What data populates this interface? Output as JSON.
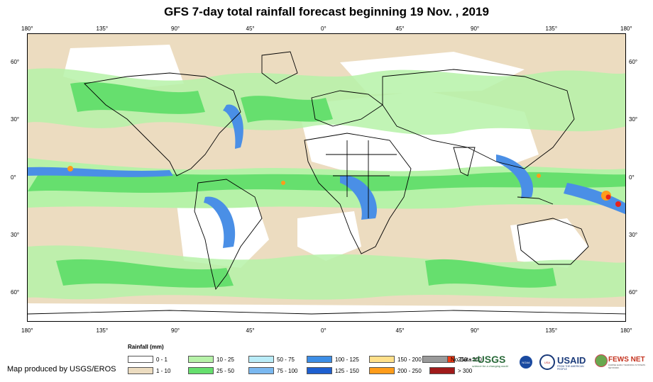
{
  "title": "GFS 7-day total rainfall forecast beginning 19 Nov. , 2019",
  "axes": {
    "top_lon": [
      "180°",
      "135°",
      "90°",
      "45°",
      "0°",
      "45°",
      "90°",
      "135°",
      "180°"
    ],
    "bottom_lon": [
      "180°",
      "135°",
      "90°",
      "45°",
      "0°",
      "45°",
      "90°",
      "135°",
      "180°"
    ],
    "left_lat": [
      "60°",
      "30°",
      "0°",
      "30°",
      "60°"
    ],
    "right_lat": [
      "60°",
      "30°",
      "0°",
      "30°",
      "60°"
    ],
    "lon_values": [
      -180,
      -135,
      -90,
      -45,
      0,
      45,
      90,
      135,
      180
    ],
    "lat_values": [
      60,
      30,
      0,
      -30,
      -60
    ]
  },
  "colors": {
    "ocean_land_dry": "#ffffff",
    "trace": "#ecdcc0",
    "light": "#b6f2a8",
    "moderate": "#66df6e",
    "heavy_blue": "#4a8fe6",
    "extreme_orange": "#ff9c1a",
    "extreme_red": "#e8231a",
    "border": "#000000"
  },
  "legend": {
    "title": "Rainfall (mm)",
    "items": [
      {
        "label": "0 - 1",
        "color": "#ffffff"
      },
      {
        "label": "1 - 10",
        "color": "#ecdcc0"
      },
      {
        "label": "10 - 25",
        "color": "#b6f2a8"
      },
      {
        "label": "25 - 50",
        "color": "#66df6e"
      },
      {
        "label": "50 - 75",
        "color": "#b9ecf8"
      },
      {
        "label": "75 - 100",
        "color": "#7ab8f0"
      },
      {
        "label": "100 - 125",
        "color": "#3d8ee6"
      },
      {
        "label": "125 - 150",
        "color": "#1e5fd0"
      },
      {
        "label": "150 - 200",
        "color": "#ffe08a"
      },
      {
        "label": "200 - 250",
        "color": "#ff9c1a"
      },
      {
        "label": "250 - 300",
        "color": "#f03a14"
      },
      {
        "label": "> 300",
        "color": "#a01a1a"
      },
      {
        "label": "No Data",
        "color": "#9a9a9a"
      }
    ]
  },
  "credit": "Map produced by USGS/EROS",
  "logos": {
    "usgs": "≈USGS",
    "usgs_tagline": "science for a changing world",
    "usaid": "USAID",
    "usaid_tagline": "FROM THE AMERICAN PEOPLE",
    "fews": "FEWS NET",
    "fews_tagline": "FAMINE EARLY WARNING SYSTEMS NETWORK",
    "noaa": "NOAA",
    "usaid_icon_letters": "USA"
  }
}
